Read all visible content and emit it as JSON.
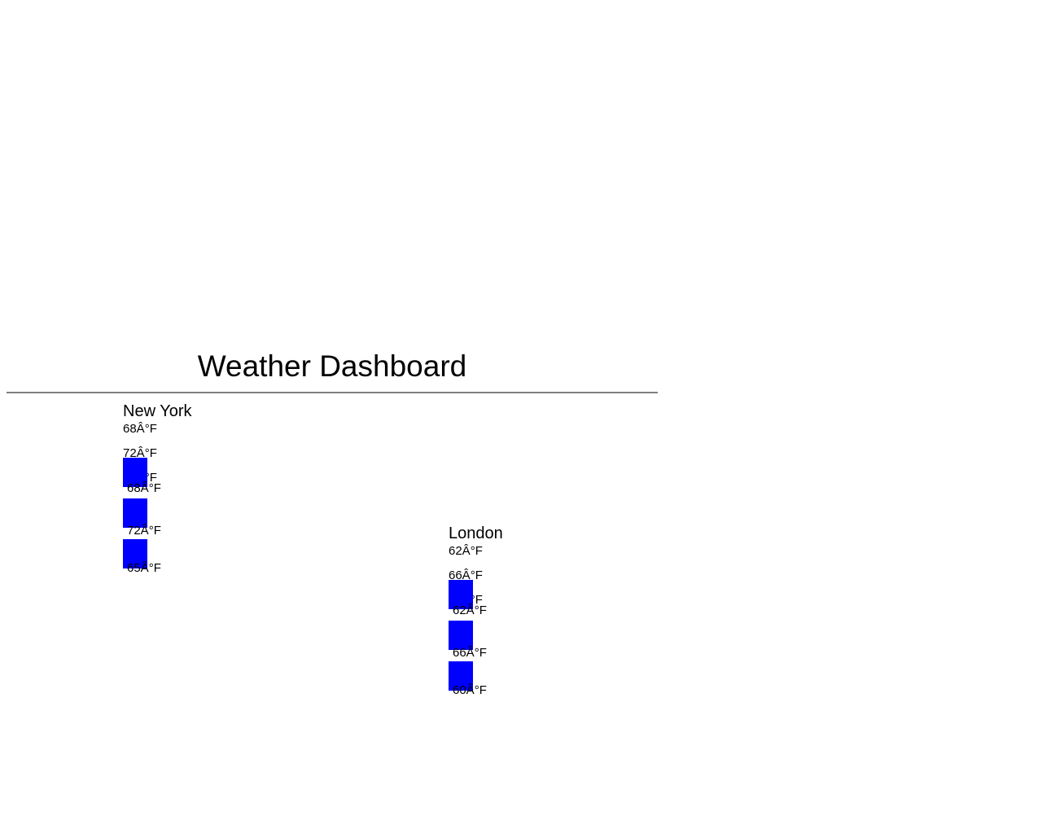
{
  "header": {
    "title": "Weather Dashboard"
  },
  "colors": {
    "bar": "#0000ff",
    "divider": "#808080"
  },
  "chart_data": [
    {
      "type": "bar",
      "title": "New York",
      "categories": [
        "",
        "",
        ""
      ],
      "values": [
        68,
        72,
        65
      ],
      "labels": [
        "68Â°F",
        "72Â°F",
        "65Â°F"
      ],
      "bar_labels": [
        "68Â°F",
        "72Â°F",
        "65Â°F"
      ],
      "xlabel": "",
      "ylabel": ""
    },
    {
      "type": "bar",
      "title": "London",
      "categories": [
        "",
        "",
        ""
      ],
      "values": [
        62,
        66,
        60
      ],
      "labels": [
        "62Â°F",
        "66Â°F",
        "60Â°F"
      ],
      "bar_labels": [
        "62Â°F",
        "66Â°F",
        "60Â°F"
      ],
      "xlabel": "",
      "ylabel": ""
    }
  ]
}
